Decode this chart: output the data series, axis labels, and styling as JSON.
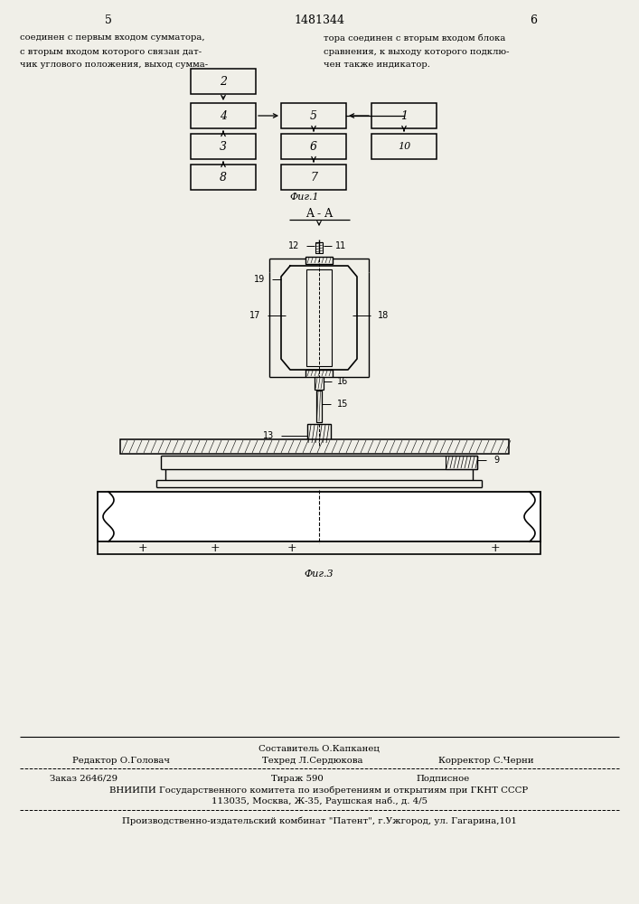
{
  "page_number_left": "5",
  "patent_number": "1481344",
  "page_number_right": "6",
  "left_text": [
    "соединен с первым входом сумматора,",
    "с вторым входом которого связан дат-",
    "чик углового положения, выход сумма-"
  ],
  "right_text": [
    "тора соединен с вторым входом блока",
    "сравнения, к выходу которого подклю-",
    "чен также индикатор."
  ],
  "fig1_caption": "Фиг.1",
  "fig3_caption": "Фиг.3",
  "aa_label": "A - A",
  "footer_sestavitel": "Составитель О.Капканец",
  "footer_redaktor": "Редактор О.Головач",
  "footer_tehred": "Техред Л.Сердюкова",
  "footer_korrektor": "Корректор С.Черни",
  "footer_zakaz": "Заказ 2646/29",
  "footer_tirazh": "Тираж 590",
  "footer_podpisnoe": "Подписное",
  "footer_vniip": "ВНИИПИ Государственного комитета по изобретениям и открытиям при ГКНТ СССР",
  "footer_address": "113035, Москва, Ж-35, Раушская наб., д. 4/5",
  "footer_patent": "Производственно-издательский комбинат \"Патент\", г.Ужгород, ул. Гагарина,101",
  "bg_color": "#f0efe8"
}
